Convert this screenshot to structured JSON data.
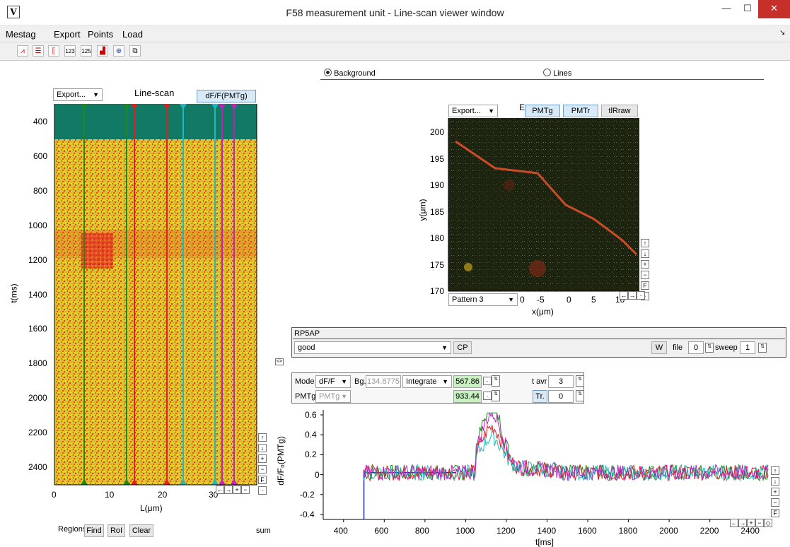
{
  "window": {
    "title": "F58  measurement unit - Line-scan viewer window",
    "icon": "V"
  },
  "menu": [
    "Mestag",
    "Export",
    "Points",
    "Load"
  ],
  "toolbar_icons": [
    "peak-icon",
    "fit-lines-icon",
    "region-icon",
    "counter-123-icon",
    "counter-125-icon",
    "chart-icon",
    "crosshair-icon",
    "copy-icon"
  ],
  "radio": {
    "background": "Background",
    "lines": "Lines"
  },
  "linescan": {
    "export": "Export...",
    "title": "Line-scan",
    "dff_button": "dF/F(PMTg)",
    "yticks": [
      "400",
      "600",
      "800",
      "1000",
      "1200",
      "1400",
      "1600",
      "1800",
      "2000",
      "2200",
      "2400"
    ],
    "ylabel": "t(ms)",
    "xticks": [
      "0",
      "10",
      "20",
      "30"
    ],
    "xlabel": "L(μm)",
    "side_buttons": [
      "↑",
      "↓",
      "+",
      "−",
      "F",
      "·"
    ],
    "nav_buttons": [
      "←",
      "→",
      "+",
      "−"
    ]
  },
  "regions": {
    "label": "Regions",
    "find": "Find",
    "roi": "RoI",
    "clear": "Clear",
    "sum": "sum"
  },
  "image": {
    "export": "Export...",
    "e": "E",
    "pmtg": "PMTg",
    "pmtr": "PMTr",
    "tlraw": "tlRraw",
    "yticks": [
      "200",
      "195",
      "190",
      "185",
      "180",
      "175",
      "170"
    ],
    "ylabel": "y(μm)",
    "xticks": [
      "0",
      "-5",
      "0",
      "5",
      "10"
    ],
    "xlabel": "x(μm)",
    "pattern": "Pattern 3",
    "side_buttons": [
      "↑",
      "↓",
      "+",
      "−",
      "F",
      "·"
    ],
    "nav_buttons": [
      "←",
      "→",
      "·"
    ]
  },
  "panel": {
    "name": "RP5AP",
    "quality": "good",
    "cp": "CP",
    "w": "W",
    "file_label": "file",
    "file_value": "0",
    "sweep_label": "sweep",
    "sweep_value": "1",
    "collapse": "<>"
  },
  "controls": {
    "mode_label": "Mode",
    "mode_value": "dF/F",
    "bg_label": "Bg.",
    "bg_value": "134.8775",
    "integrate": "Integrate",
    "val1": "567.86",
    "val2": "933.44",
    "tavr_label": "t avr",
    "tavr_value": "3",
    "tr_label": "Tr.",
    "tr_value": "0",
    "pmt_label": "PMTg",
    "pmt_value": "PMTg"
  },
  "chart_data": {
    "type": "line",
    "ylabel": "dF/F₀(PMTg)",
    "xlabel": "t[ms]",
    "xlim": [
      300,
      2500
    ],
    "ylim": [
      -0.45,
      0.65
    ],
    "xticks": [
      "400",
      "600",
      "800",
      "1000",
      "1200",
      "1400",
      "1600",
      "1800",
      "2000",
      "2200",
      "2400"
    ],
    "yticks": [
      "0.6",
      "0.4",
      "0.2",
      "0",
      "-0.2",
      "-0.4"
    ],
    "series": [
      {
        "color": "#1a8a1a",
        "peak": 0.6
      },
      {
        "color": "#e02020",
        "peak": 0.38
      },
      {
        "color": "#20b8c0",
        "peak": 0.28
      },
      {
        "color": "#c020c0",
        "peak": 0.52
      }
    ],
    "baseline_x": [
      500,
      950
    ],
    "side_buttons": [
      "↑",
      "↓",
      "+",
      "−",
      "F"
    ],
    "nav_buttons": [
      "←",
      "→",
      "+",
      "−",
      "◇"
    ]
  }
}
